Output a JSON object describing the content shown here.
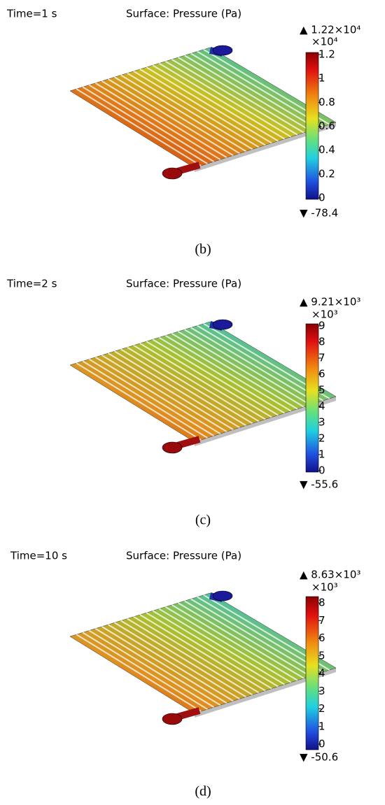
{
  "panels": [
    {
      "time": "Time=1 s",
      "surface": "Surface: Pressure (Pa)",
      "max": "▲ 1.22×10⁴",
      "multiplier": "×10⁴",
      "ticks": [
        1.2,
        1,
        0.8,
        0.6,
        0.4,
        0.2,
        0
      ],
      "min": "▼ -78.4",
      "caption": "(b)"
    },
    {
      "time": "Time=2 s",
      "surface": "Surface: Pressure (Pa)",
      "max": "▲ 9.21×10³",
      "multiplier": "×10³",
      "ticks": [
        9,
        8,
        7,
        6,
        5,
        4,
        3,
        2,
        1,
        0
      ],
      "min": "▼ -55.6",
      "caption": "(c)"
    },
    {
      "time": "Time=10 s",
      "surface": "Surface: Pressure (Pa)",
      "max": "▲ 8.63×10³",
      "multiplier": "×10³",
      "ticks": [
        8,
        7,
        6,
        5,
        4,
        3,
        2,
        1,
        0
      ],
      "min": "▼ -50.6",
      "caption": "(d)"
    }
  ]
}
